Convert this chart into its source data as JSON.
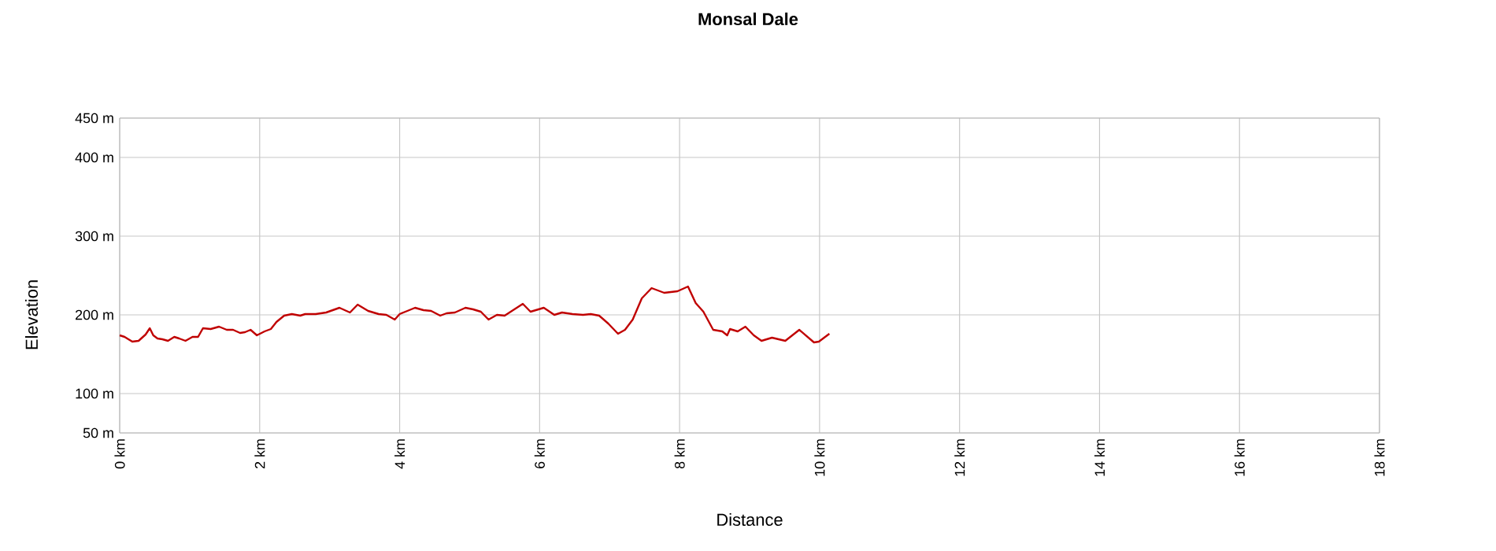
{
  "chart_data": {
    "type": "line",
    "title": "Monsal Dale",
    "xlabel": "Distance",
    "ylabel": "Elevation",
    "xlim": [
      0,
      18
    ],
    "xticks": [
      {
        "value": 0,
        "label": "0 km"
      },
      {
        "value": 2,
        "label": "2 km"
      },
      {
        "value": 4,
        "label": "4 km"
      },
      {
        "value": 6,
        "label": "6 km"
      },
      {
        "value": 8,
        "label": "8 km"
      },
      {
        "value": 10,
        "label": "10 km"
      },
      {
        "value": 12,
        "label": "12 km"
      },
      {
        "value": 14,
        "label": "14 km"
      },
      {
        "value": 16,
        "label": "16 km"
      },
      {
        "value": 18,
        "label": "18 km"
      }
    ],
    "ylim": [
      50,
      450
    ],
    "yticks": [
      {
        "value": 50,
        "label": "50 m"
      },
      {
        "value": 100,
        "label": "100 m"
      },
      {
        "value": 200,
        "label": "200 m"
      },
      {
        "value": 300,
        "label": "300 m"
      },
      {
        "value": 400,
        "label": "400 m"
      },
      {
        "value": 450,
        "label": "450 m"
      }
    ],
    "grid": true,
    "marker": "none",
    "line_style": "solid",
    "x": [
      0,
      0.07,
      0.18,
      0.27,
      0.37,
      0.43,
      0.48,
      0.54,
      0.61,
      0.69,
      0.78,
      0.85,
      0.94,
      1.04,
      1.12,
      1.19,
      1.3,
      1.42,
      1.53,
      1.62,
      1.72,
      1.79,
      1.87,
      1.96,
      2.07,
      2.16,
      2.24,
      2.35,
      2.46,
      2.58,
      2.65,
      2.8,
      2.95,
      3.14,
      3.29,
      3.4,
      3.55,
      3.7,
      3.81,
      3.93,
      4.0,
      4.11,
      4.22,
      4.34,
      4.45,
      4.58,
      4.67,
      4.79,
      4.94,
      5.05,
      5.16,
      5.27,
      5.39,
      5.5,
      5.76,
      5.87,
      6.06,
      6.21,
      6.32,
      6.47,
      6.62,
      6.73,
      6.85,
      6.98,
      7.12,
      7.22,
      7.33,
      7.46,
      7.6,
      7.78,
      7.97,
      8.12,
      8.23,
      8.34,
      8.48,
      8.61,
      8.68,
      8.72,
      8.83,
      8.94,
      9.06,
      9.17,
      9.32,
      9.51,
      9.71,
      9.92,
      9.99,
      10.14
    ],
    "series": [
      {
        "color": "#c00000",
        "values": [
          174,
          172,
          166,
          167,
          175,
          183,
          174,
          170,
          169,
          167,
          172,
          170,
          167,
          172,
          172,
          183,
          182,
          185,
          181,
          181,
          177,
          178,
          181,
          174,
          179,
          182,
          191,
          199,
          201,
          199,
          201,
          201,
          203,
          209,
          203,
          213,
          205,
          201,
          200,
          194,
          201,
          205,
          209,
          206,
          205,
          199,
          202,
          203,
          209,
          207,
          204,
          194,
          200,
          199,
          214,
          204,
          209,
          200,
          203,
          201,
          200,
          201,
          199,
          189,
          176,
          181,
          194,
          221,
          234,
          228,
          230,
          236,
          215,
          204,
          181,
          179,
          174,
          182,
          179,
          185,
          174,
          167,
          171,
          167,
          181,
          165,
          166,
          176
        ]
      }
    ]
  }
}
